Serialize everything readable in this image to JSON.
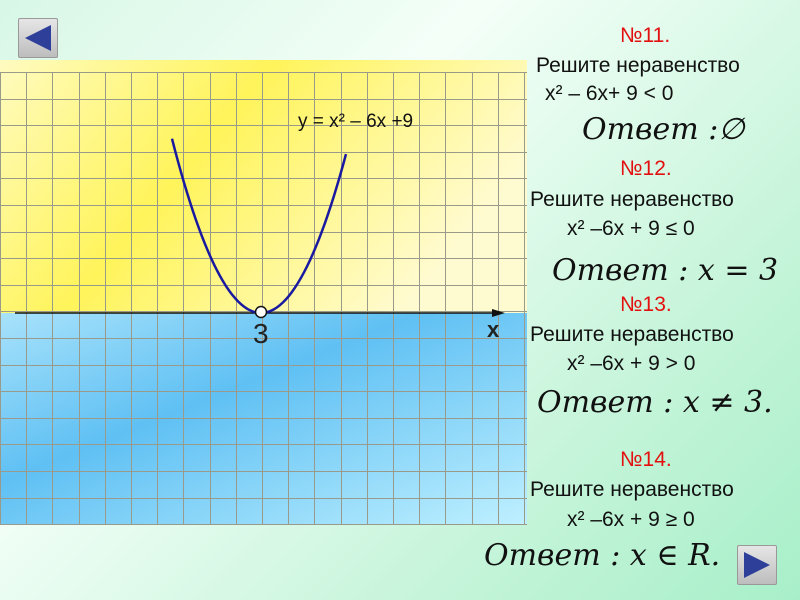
{
  "nav": {
    "back_icon": "triangle-left-icon",
    "forward_icon": "triangle-right-icon"
  },
  "graph": {
    "equation": "y = x² – 6x +9",
    "vertex_label": "3",
    "axis_label": "x",
    "colors": {
      "above_axis": "#fff36a",
      "below_axis": "#6cc8f5",
      "curve": "#1a1aa0"
    }
  },
  "tasks": [
    {
      "number": "№11.",
      "prompt": "Решите неравенство",
      "inequality": "x² – 6x+ 9 < 0",
      "answer": "Ответ :∅"
    },
    {
      "number": "№12.",
      "prompt": "Решите неравенство",
      "inequality": "x² –6x + 9 ≤ 0",
      "answer": "Ответ : x = 3"
    },
    {
      "number": "№13.",
      "prompt": "Решите неравенство",
      "inequality": "x² –6x + 9 > 0",
      "answer": "Ответ : x ≠ 3."
    },
    {
      "number": "№14.",
      "prompt": "Решите неравенство",
      "inequality": "x² –6x + 9 ≥ 0",
      "answer": "Ответ : x ∈ R."
    }
  ]
}
